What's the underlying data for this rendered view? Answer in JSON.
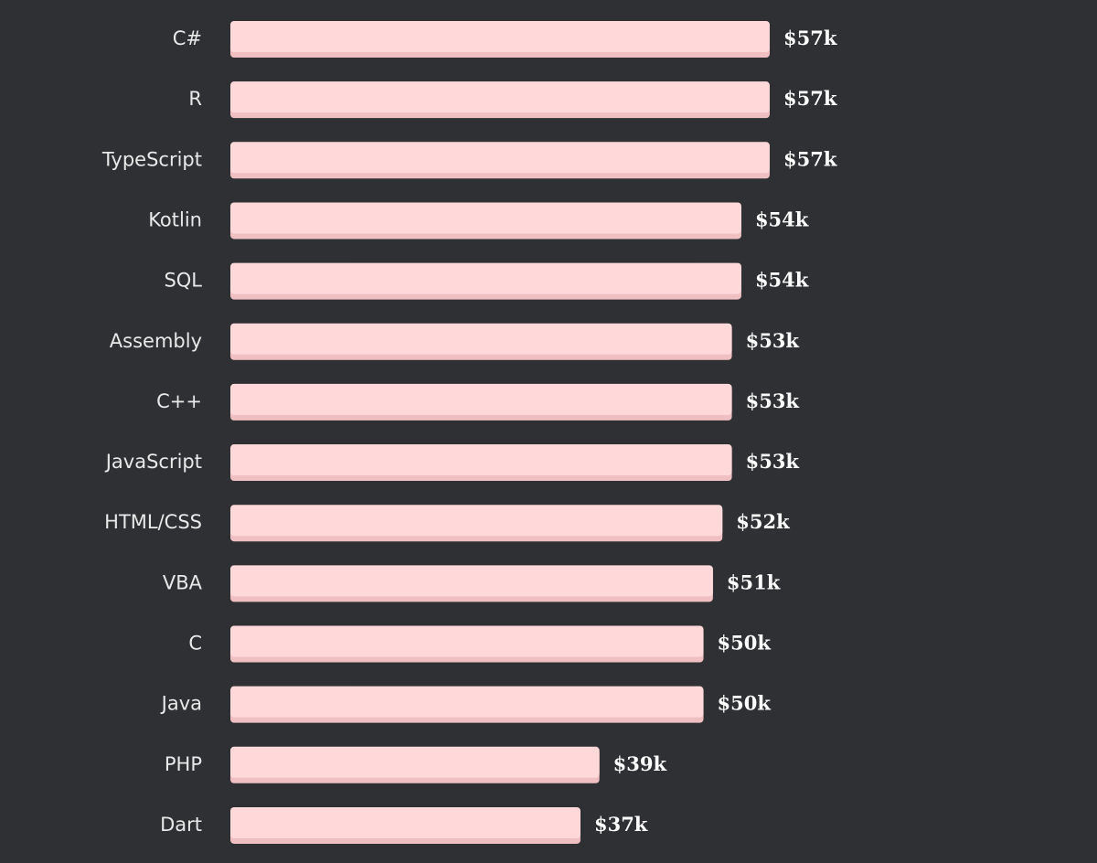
{
  "chart_data": {
    "type": "bar",
    "orientation": "horizontal",
    "categories": [
      "C#",
      "R",
      "TypeScript",
      "Kotlin",
      "SQL",
      "Assembly",
      "C++",
      "JavaScript",
      "HTML/CSS",
      "VBA",
      "C",
      "Java",
      "PHP",
      "Dart"
    ],
    "values": [
      57,
      57,
      57,
      54,
      54,
      53,
      53,
      53,
      52,
      51,
      50,
      50,
      39,
      37
    ],
    "data_labels": [
      "$57k",
      "$57k",
      "$57k",
      "$54k",
      "$54k",
      "$53k",
      "$53k",
      "$53k",
      "$52k",
      "$51k",
      "$50k",
      "$50k",
      "$39k",
      "$37k"
    ],
    "unit": "$k",
    "title": "",
    "xlabel": "",
    "ylabel": "",
    "grid": false,
    "legend": "none",
    "colors": {
      "background": "#2e3033",
      "bar": "#ffd9da",
      "bar_shadow": "#efbfc2",
      "category_text": "#e9e9e9",
      "value_text": "#ffffff"
    }
  }
}
